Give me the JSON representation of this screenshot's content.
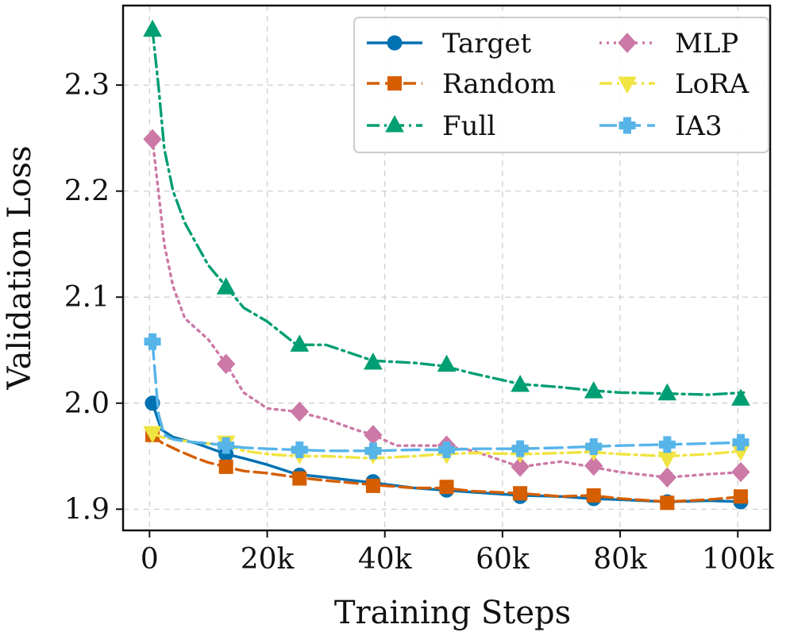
{
  "chart_data": {
    "type": "line",
    "xlabel": "Training Steps",
    "ylabel": "Validation Loss",
    "xlim": [
      -4500,
      105500
    ],
    "ylim": [
      1.88,
      2.375
    ],
    "xticks": [
      0,
      20000,
      40000,
      60000,
      80000,
      100000
    ],
    "xtick_labels": [
      "0",
      "20k",
      "40k",
      "60k",
      "80k",
      "100k"
    ],
    "yticks": [
      1.9,
      2.0,
      2.1,
      2.2,
      2.3
    ],
    "ytick_labels": [
      "1.9",
      "2.0",
      "2.1",
      "2.2",
      "2.3"
    ],
    "grid": true,
    "legend": {
      "position": "top-right",
      "columns": 2
    },
    "series": [
      {
        "name": "Target",
        "color": "#0072B2",
        "dash": "solid",
        "marker": "circle",
        "x": [
          500,
          2000,
          4000,
          6000,
          8000,
          10000,
          13000,
          16000,
          20000,
          25000,
          30000,
          38000,
          45000,
          50000,
          55000,
          63000,
          70000,
          75000,
          80000,
          88000,
          95000,
          101000
        ],
        "y": [
          2.0,
          1.975,
          1.968,
          1.965,
          1.962,
          1.958,
          1.952,
          1.948,
          1.942,
          1.933,
          1.93,
          1.925,
          1.92,
          1.918,
          1.916,
          1.913,
          1.912,
          1.91,
          1.909,
          1.907,
          1.908,
          1.907
        ],
        "marker_x": [
          500,
          13000,
          25500,
          38000,
          50500,
          63000,
          75500,
          88000,
          100500
        ],
        "marker_y": [
          2.0,
          1.952,
          1.932,
          1.926,
          1.918,
          1.912,
          1.91,
          1.907,
          1.907
        ]
      },
      {
        "name": "Random",
        "color": "#D55E00",
        "dash": "dashed",
        "marker": "square",
        "x": [
          500,
          2000,
          5000,
          8000,
          10000,
          13000,
          16000,
          20000,
          25000,
          30000,
          38000,
          45000,
          50000,
          55000,
          63000,
          70000,
          75000,
          80000,
          88000,
          95000,
          101000
        ],
        "y": [
          1.97,
          1.963,
          1.955,
          1.948,
          1.944,
          1.94,
          1.936,
          1.934,
          1.93,
          1.927,
          1.923,
          1.92,
          1.92,
          1.917,
          1.915,
          1.912,
          1.913,
          1.91,
          1.907,
          1.909,
          1.912
        ],
        "marker_x": [
          500,
          13000,
          25500,
          38000,
          50500,
          63000,
          75500,
          88000,
          100500
        ],
        "marker_y": [
          1.97,
          1.94,
          1.929,
          1.922,
          1.921,
          1.915,
          1.913,
          1.906,
          1.912
        ]
      },
      {
        "name": "Full",
        "color": "#009E73",
        "dash": "dashdot",
        "marker": "triangle",
        "x": [
          500,
          1500,
          2500,
          4000,
          6000,
          8000,
          10000,
          13000,
          16000,
          20000,
          25000,
          30000,
          38000,
          45000,
          50000,
          55000,
          63000,
          70000,
          75000,
          80000,
          88000,
          95000,
          101000
        ],
        "y": [
          2.352,
          2.3,
          2.24,
          2.2,
          2.17,
          2.15,
          2.13,
          2.11,
          2.09,
          2.077,
          2.055,
          2.055,
          2.04,
          2.038,
          2.035,
          2.028,
          2.018,
          2.015,
          2.012,
          2.01,
          2.009,
          2.008,
          2.01
        ],
        "marker_x": [
          500,
          13000,
          25500,
          38000,
          50500,
          63000,
          75500,
          88000,
          100500
        ],
        "marker_y": [
          2.352,
          2.109,
          2.055,
          2.038,
          2.036,
          2.017,
          2.011,
          2.009,
          2.004
        ]
      },
      {
        "name": "MLP",
        "color": "#CC79A7",
        "dash": "dotted",
        "marker": "diamond",
        "x": [
          500,
          1500,
          2500,
          4000,
          6000,
          8000,
          10000,
          13000,
          16000,
          20000,
          25000,
          30000,
          35000,
          38000,
          42000,
          50000,
          55000,
          63000,
          70000,
          75000,
          80000,
          88000,
          95000,
          101000
        ],
        "y": [
          2.249,
          2.2,
          2.15,
          2.11,
          2.08,
          2.07,
          2.06,
          2.037,
          2.01,
          1.995,
          1.992,
          1.985,
          1.975,
          1.97,
          1.96,
          1.96,
          1.955,
          1.94,
          1.945,
          1.94,
          1.935,
          1.93,
          1.933,
          1.935
        ],
        "marker_x": [
          500,
          13000,
          25500,
          38000,
          50500,
          63000,
          75500,
          88000,
          100500
        ],
        "marker_y": [
          2.249,
          2.037,
          1.992,
          1.97,
          1.96,
          1.94,
          1.941,
          1.93,
          1.935
        ]
      },
      {
        "name": "LoRA",
        "color": "#F0E442",
        "dash": "dashdot",
        "marker": "triangle_down",
        "x": [
          500,
          2000,
          5000,
          8000,
          10000,
          13000,
          16000,
          20000,
          25000,
          30000,
          38000,
          45000,
          50000,
          55000,
          63000,
          70000,
          75000,
          80000,
          88000,
          95000,
          101000
        ],
        "y": [
          1.972,
          1.968,
          1.965,
          1.963,
          1.962,
          1.961,
          1.955,
          1.952,
          1.95,
          1.95,
          1.948,
          1.95,
          1.952,
          1.953,
          1.952,
          1.953,
          1.954,
          1.952,
          1.95,
          1.952,
          1.955
        ],
        "marker_x": [
          500,
          13000,
          25500,
          38000,
          50500,
          63000,
          75500,
          88000,
          100500
        ],
        "marker_y": [
          1.972,
          1.963,
          1.952,
          1.952,
          1.952,
          1.953,
          1.955,
          1.948,
          1.955
        ]
      },
      {
        "name": "IA3",
        "color": "#56B4E9",
        "dash": "longdash",
        "marker": "plus",
        "x": [
          500,
          1500,
          2500,
          4000,
          6000,
          8000,
          10000,
          13000,
          16000,
          20000,
          25000,
          30000,
          38000,
          45000,
          50000,
          55000,
          63000,
          70000,
          75000,
          80000,
          88000,
          95000,
          101000
        ],
        "y": [
          2.058,
          1.99,
          1.97,
          1.966,
          1.964,
          1.963,
          1.962,
          1.96,
          1.958,
          1.957,
          1.956,
          1.955,
          1.955,
          1.956,
          1.956,
          1.957,
          1.957,
          1.958,
          1.959,
          1.96,
          1.961,
          1.962,
          1.963
        ],
        "marker_x": [
          500,
          13000,
          25500,
          38000,
          50500,
          63000,
          75500,
          88000,
          100500
        ],
        "marker_y": [
          2.058,
          1.96,
          1.956,
          1.955,
          1.956,
          1.957,
          1.959,
          1.961,
          1.963
        ]
      }
    ]
  }
}
